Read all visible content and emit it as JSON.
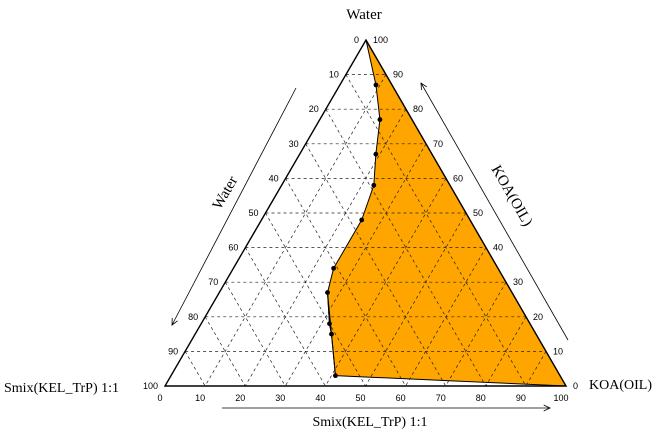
{
  "chart_data": {
    "type": "ternary",
    "axes": {
      "top": {
        "label": "Water"
      },
      "left": {
        "label": "Smix(KEL_TrP) 1:1"
      },
      "right": {
        "label": "KOA(OIL)"
      },
      "left_side_label": "Water",
      "right_side_label": "KOA(OIL)",
      "bottom_label": "Smix(KEL_TrP) 1:1"
    },
    "ticks": {
      "left_side": [
        "0",
        "10",
        "20",
        "30",
        "40",
        "50",
        "60",
        "70",
        "80",
        "90",
        "100"
      ],
      "right_side": [
        "100",
        "90",
        "80",
        "70",
        "60",
        "50",
        "40",
        "30",
        "20",
        "10",
        "0"
      ],
      "bottom": [
        "0",
        "10",
        "20",
        "30",
        "40",
        "50",
        "60",
        "70",
        "80",
        "90",
        "100"
      ]
    },
    "regions": [
      {
        "name": "",
        "color": "#ffa500",
        "boundary_points": [
          {
            "water": 100,
            "smix": 0,
            "oil": 0
          },
          {
            "water": 87,
            "smix": 4,
            "oil": 9
          },
          {
            "water": 77,
            "smix": 8,
            "oil": 15
          },
          {
            "water": 67,
            "smix": 14,
            "oil": 19
          },
          {
            "water": 58,
            "smix": 19,
            "oil": 23
          },
          {
            "water": 48,
            "smix": 27,
            "oil": 25
          },
          {
            "water": 34,
            "smix": 41,
            "oil": 25
          },
          {
            "water": 27,
            "smix": 46,
            "oil": 27
          },
          {
            "water": 18,
            "smix": 50,
            "oil": 32
          },
          {
            "water": 15,
            "smix": 51,
            "oil": 34
          },
          {
            "water": 3,
            "smix": 56,
            "oil": 41
          }
        ]
      },
      {
        "name": "",
        "color": "#00ee22",
        "boundary_points": [
          {
            "water": 3,
            "smix": 56,
            "oil": 41
          },
          {
            "water": 15,
            "smix": 51,
            "oil": 34
          },
          {
            "water": 18,
            "smix": 50,
            "oil": 32
          },
          {
            "water": 27,
            "smix": 46,
            "oil": 27
          }
        ]
      }
    ],
    "grid": true,
    "legend": "none"
  }
}
